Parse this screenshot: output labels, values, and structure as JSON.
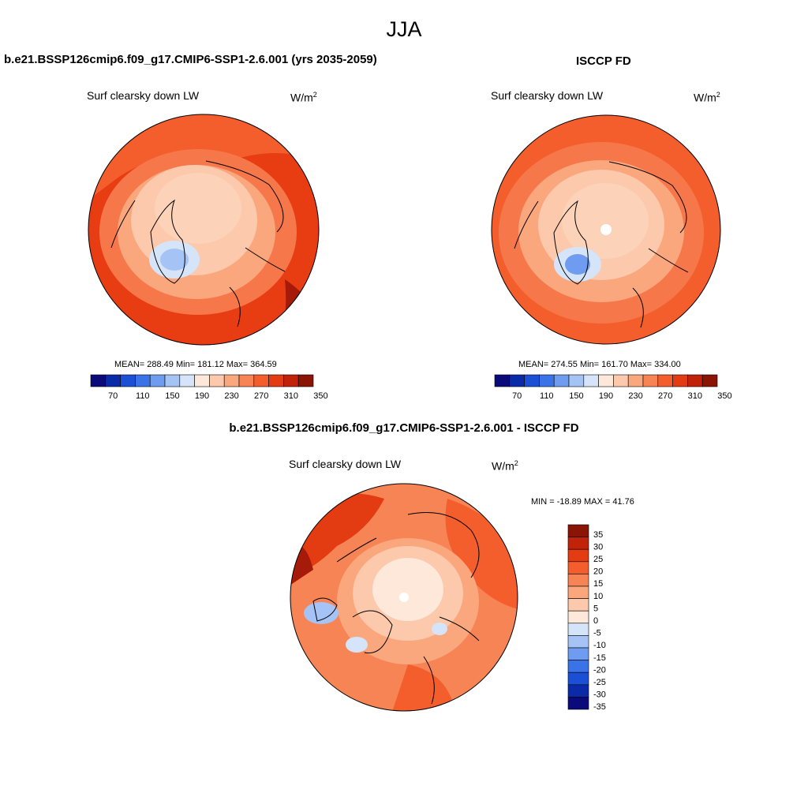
{
  "season": "JJA",
  "panels": [
    {
      "title": "b.e21.BSSP126cmip6.f09_g17.CMIP6-SSP1-2.6.001 (yrs 2035-2059)",
      "subtitle": "Surf clearsky down LW",
      "units_base": "W/m",
      "units_exp": "2",
      "stats": "MEAN= 288.49  Min= 181.12  Max= 364.59"
    },
    {
      "title": "ISCCP FD",
      "subtitle": "Surf clearsky down LW",
      "units_base": "W/m",
      "units_exp": "2",
      "stats": "MEAN= 274.55  Min= 161.70  Max= 334.00"
    },
    {
      "title": "b.e21.BSSP126cmip6.f09_g17.CMIP6-SSP1-2.6.001 - ISCCP FD",
      "subtitle": "Surf clearsky down LW",
      "units_base": "W/m",
      "units_exp": "2",
      "stats": "MIN = -18.89 MAX =  41.76"
    }
  ],
  "colorbar_abs": {
    "colors": [
      "#0a0a7a",
      "#0a2aa8",
      "#1a4fd6",
      "#3a72e8",
      "#6f9bf0",
      "#a5c3f5",
      "#d5e4f8",
      "#fde8da",
      "#fcc9ac",
      "#fba77e",
      "#f78454",
      "#f35e2c",
      "#e33b12",
      "#c0230a",
      "#8a1405"
    ],
    "labels": [
      "70",
      "110",
      "150",
      "190",
      "230",
      "270",
      "310",
      "350"
    ]
  },
  "colorbar_diff": {
    "colors": [
      "#8a1405",
      "#c0230a",
      "#e33b12",
      "#f35e2c",
      "#f78454",
      "#fba77e",
      "#fcc9ac",
      "#fde8da",
      "#d5e4f8",
      "#a5c3f5",
      "#6f9bf0",
      "#3a72e8",
      "#1a4fd6",
      "#0a2aa8",
      "#0a0a7a"
    ],
    "labels": [
      "35",
      "30",
      "25",
      "20",
      "15",
      "10",
      "5",
      "0",
      "-5",
      "-10",
      "-15",
      "-20",
      "-25",
      "-30",
      "-35"
    ]
  },
  "fills": {
    "ocean_warm": "#e83c12",
    "mid": "#f6784a",
    "light": "#fbb08a",
    "pale": "#fcd2b8",
    "cream": "#fde8da",
    "blue_light": "#a5c3f5",
    "blue": "#6f9bf0",
    "dark": "#a51a08"
  }
}
